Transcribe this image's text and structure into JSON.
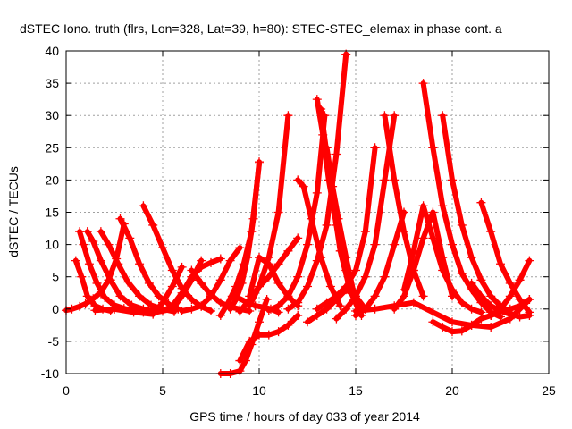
{
  "chart_data": {
    "type": "scatter",
    "title": "dSTEC Iono. truth (flrs, Lon=328, Lat=39, h=80): STEC-STEC_elemax in phase cont. a",
    "xlabel": "GPS time / hours of day 033 of year 2014",
    "ylabel": "dSTEC  / TECUs",
    "xlim": [
      0,
      25
    ],
    "ylim": [
      -10,
      40
    ],
    "xticks": [
      "0",
      "5",
      "10",
      "15",
      "20",
      "25"
    ],
    "yticks": [
      "-10",
      "-5",
      "0",
      "5",
      "10",
      "15",
      "20",
      "25",
      "30",
      "35",
      "40"
    ],
    "grid": true,
    "marker": "+",
    "color": "#ff0000",
    "series": [
      {
        "x": [
          0.0,
          0.3,
          0.7,
          1.0,
          1.4,
          1.8,
          2.2,
          2.6,
          3.0
        ],
        "y": [
          -0.2,
          0.0,
          0.4,
          0.8,
          1.6,
          2.6,
          4.5,
          7.8,
          13.2
        ]
      },
      {
        "x": [
          0.5,
          0.8,
          1.1,
          1.5,
          1.9,
          2.3
        ],
        "y": [
          7.5,
          5.0,
          2.0,
          0.5,
          0.0,
          -0.3
        ]
      },
      {
        "x": [
          0.7,
          0.9,
          1.2,
          1.6,
          2.0,
          2.5,
          3.0,
          3.5,
          4.0
        ],
        "y": [
          12.0,
          10.0,
          7.0,
          4.0,
          1.8,
          0.6,
          0.1,
          -0.3,
          -0.5
        ]
      },
      {
        "x": [
          1.1,
          1.4,
          1.8,
          2.3,
          2.8,
          3.4,
          4.0,
          4.5
        ],
        "y": [
          12.0,
          10.5,
          7.5,
          4.5,
          2.0,
          0.6,
          0.0,
          -0.3
        ]
      },
      {
        "x": [
          1.8,
          2.2,
          2.7,
          3.2,
          3.8,
          4.4,
          5.0,
          5.6
        ],
        "y": [
          12.0,
          10.0,
          7.0,
          4.2,
          2.0,
          0.6,
          0.0,
          -0.4
        ]
      },
      {
        "x": [
          2.8,
          3.3,
          3.8,
          4.3,
          4.8,
          5.3,
          5.8
        ],
        "y": [
          14.0,
          11.0,
          7.0,
          4.0,
          2.0,
          0.8,
          0.0
        ]
      },
      {
        "x": [
          4.0,
          4.5,
          5.0,
          5.5,
          6.0,
          6.5,
          7.0,
          7.5
        ],
        "y": [
          16.0,
          13.0,
          9.5,
          6.0,
          3.2,
          1.5,
          0.4,
          -0.3
        ]
      },
      {
        "x": [
          1.5,
          2.5,
          3.5,
          4.5,
          5.0,
          5.5,
          6.0
        ],
        "y": [
          -0.2,
          0.0,
          -0.5,
          -0.8,
          1.0,
          3.5,
          6.5
        ]
      },
      {
        "x": [
          2.5,
          3.5,
          4.5,
          5.5,
          6.0,
          6.5,
          7.0
        ],
        "y": [
          0.0,
          -0.3,
          -0.6,
          0.0,
          2.0,
          4.5,
          7.5
        ]
      },
      {
        "x": [
          5.0,
          5.5,
          6.0,
          6.5,
          7.0,
          7.5,
          8.0
        ],
        "y": [
          -0.3,
          0.5,
          2.5,
          5.0,
          6.5,
          7.2,
          7.8
        ]
      },
      {
        "x": [
          6.0,
          6.5,
          7.0,
          7.5,
          8.0,
          8.5,
          9.0
        ],
        "y": [
          -0.3,
          0.0,
          0.5,
          2.0,
          4.5,
          7.5,
          9.5
        ]
      },
      {
        "x": [
          6.5,
          7.0,
          7.5,
          8.0,
          8.5,
          9.0,
          9.5
        ],
        "y": [
          6.0,
          4.0,
          2.2,
          1.0,
          0.3,
          0.0,
          -0.3
        ]
      },
      {
        "x": [
          8.0,
          8.4,
          8.8,
          9.2,
          9.6,
          10.0
        ],
        "y": [
          -1.0,
          1.0,
          3.5,
          7.0,
          12.0,
          22.5
        ]
      },
      {
        "x": [
          8.5,
          8.8,
          9.1,
          9.4,
          9.7,
          10.0
        ],
        "y": [
          0.0,
          1.5,
          4.0,
          8.0,
          14.0,
          22.8
        ]
      },
      {
        "x": [
          8.6,
          9.0,
          9.4,
          9.8,
          10.2,
          10.6,
          11.0
        ],
        "y": [
          2.0,
          1.6,
          1.0,
          0.5,
          0.3,
          0.0,
          -0.5
        ]
      },
      {
        "x": [
          9.0,
          9.5,
          10.0,
          10.5,
          11.0,
          11.5,
          12.0
        ],
        "y": [
          -0.4,
          1.5,
          3.5,
          5.0,
          7.0,
          9.0,
          11.0
        ]
      },
      {
        "x": [
          8.0,
          8.5,
          9.0,
          9.3,
          9.6,
          10.0,
          10.4
        ],
        "y": [
          -10.0,
          -10.0,
          -9.6,
          -8.0,
          -5.5,
          -2.0,
          1.5
        ]
      },
      {
        "x": [
          9.0,
          9.5,
          10.0,
          10.5,
          11.0,
          11.5,
          12.0
        ],
        "y": [
          -8.0,
          -5.0,
          -4.0,
          -4.0,
          -3.5,
          -2.5,
          -1.0
        ]
      },
      {
        "x": [
          9.5,
          10.0,
          10.5,
          11.0,
          11.5,
          12.0
        ],
        "y": [
          2.0,
          8.0,
          7.0,
          4.0,
          2.0,
          0.5
        ]
      },
      {
        "x": [
          9.5,
          10.0,
          10.5,
          11.0,
          11.5
        ],
        "y": [
          0.5,
          3.5,
          8.0,
          15.0,
          30.0
        ]
      },
      {
        "x": [
          10.5,
          11.0,
          11.5,
          12.0,
          12.5,
          13.0,
          13.4
        ],
        "y": [
          -0.2,
          0.5,
          2.0,
          5.0,
          10.0,
          18.0,
          30.0
        ]
      },
      {
        "x": [
          12.0,
          12.3,
          12.7,
          13.2,
          13.7,
          14.2
        ],
        "y": [
          20.0,
          19.0,
          14.0,
          8.0,
          3.5,
          0.5
        ]
      },
      {
        "x": [
          11.5,
          12.0,
          12.5,
          13.0,
          13.5,
          14.0,
          14.5
        ],
        "y": [
          0.0,
          1.0,
          3.5,
          7.5,
          13.0,
          24.0,
          39.5
        ]
      },
      {
        "x": [
          13.0,
          13.3,
          13.6,
          14.0,
          14.5,
          15.0
        ],
        "y": [
          32.5,
          27.0,
          20.0,
          13.0,
          6.0,
          1.5
        ]
      },
      {
        "x": [
          13.2,
          13.5,
          13.8,
          14.2,
          14.7,
          15.2
        ],
        "y": [
          31.0,
          24.0,
          17.0,
          9.0,
          3.0,
          -0.5
        ]
      },
      {
        "x": [
          13.5,
          13.8,
          14.1,
          14.5,
          14.9,
          15.3
        ],
        "y": [
          25.0,
          19.0,
          14.0,
          8.0,
          2.5,
          -1.0
        ]
      },
      {
        "x": [
          13.0,
          13.5,
          14.0,
          14.5,
          15.0,
          15.5,
          16.0
        ],
        "y": [
          0.0,
          1.0,
          2.0,
          3.5,
          6.0,
          12.0,
          25.0
        ]
      },
      {
        "x": [
          12.5,
          13.0,
          13.5,
          14.0,
          14.5,
          15.0,
          15.5
        ],
        "y": [
          -2.0,
          -1.0,
          0.0,
          1.5,
          3.0,
          2.0,
          0.0
        ]
      },
      {
        "x": [
          14.0,
          14.5,
          15.0,
          15.5,
          16.0,
          16.5,
          17.0
        ],
        "y": [
          -1.5,
          0.0,
          2.0,
          5.0,
          10.0,
          20.0,
          30.0
        ]
      },
      {
        "x": [
          15.0,
          15.5,
          16.0,
          16.5,
          17.0,
          17.5
        ],
        "y": [
          -1.0,
          0.0,
          2.0,
          5.0,
          10.0,
          15.0
        ]
      },
      {
        "x": [
          16.5,
          17.0,
          17.5,
          18.0,
          18.5
        ],
        "y": [
          30.0,
          20.0,
          12.0,
          6.0,
          2.0
        ]
      },
      {
        "x": [
          17.0,
          17.5,
          18.0,
          18.5,
          19.0,
          19.5,
          20.0
        ],
        "y": [
          0.0,
          2.0,
          6.0,
          11.0,
          15.0,
          8.0,
          2.0
        ]
      },
      {
        "x": [
          17.5,
          18.0,
          18.5,
          19.0,
          19.5,
          20.0,
          20.5,
          21.0,
          21.5
        ],
        "y": [
          3.0,
          9.0,
          16.0,
          11.0,
          6.0,
          3.0,
          1.0,
          0.0,
          -0.5
        ]
      },
      {
        "x": [
          18.5,
          19.0,
          19.5,
          20.0,
          20.5,
          21.0,
          21.5,
          22.0,
          22.5
        ],
        "y": [
          35.0,
          25.0,
          16.0,
          10.0,
          5.5,
          3.0,
          1.0,
          -0.5,
          -1.2
        ]
      },
      {
        "x": [
          19.5,
          20.0,
          20.5,
          21.0,
          21.5,
          22.0,
          22.5,
          23.0
        ],
        "y": [
          30.0,
          20.0,
          13.0,
          8.0,
          4.5,
          2.0,
          0.5,
          -0.5
        ]
      },
      {
        "x": [
          19.0,
          19.5,
          20.0,
          20.5,
          21.0,
          21.5,
          22.0,
          22.5,
          23.0,
          23.5,
          24.0
        ],
        "y": [
          -2.0,
          -2.8,
          -3.5,
          -3.4,
          -2.5,
          -1.5,
          -1.0,
          -0.4,
          0.0,
          0.5,
          1.5
        ]
      },
      {
        "x": [
          15.0,
          16.0,
          17.0,
          18.0,
          19.0,
          20.0,
          21.0,
          22.0,
          23.0,
          24.0
        ],
        "y": [
          -0.3,
          0.0,
          0.5,
          1.0,
          -0.5,
          -2.0,
          -2.5,
          -2.8,
          -1.5,
          1.5
        ]
      },
      {
        "x": [
          21.5,
          22.0,
          22.5,
          23.0,
          23.5,
          24.0
        ],
        "y": [
          16.5,
          12.0,
          7.0,
          4.0,
          1.5,
          -0.5
        ]
      },
      {
        "x": [
          22.0,
          22.5,
          23.0,
          23.5,
          24.0
        ],
        "y": [
          -1.0,
          0.0,
          2.0,
          4.5,
          7.5
        ]
      },
      {
        "x": [
          21.0,
          21.5,
          22.0,
          22.5,
          23.0,
          23.5,
          24.0
        ],
        "y": [
          4.0,
          2.0,
          0.5,
          -0.3,
          -0.8,
          -1.2,
          -1.0
        ]
      }
    ]
  }
}
